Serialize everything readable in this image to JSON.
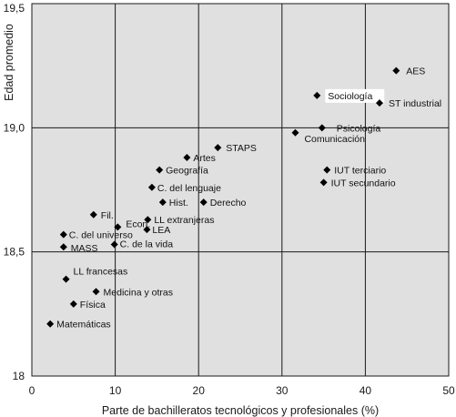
{
  "chart_data": {
    "type": "scatter",
    "title": "",
    "xlabel": "Parte de bachilleratos tecnológicos y profesionales (%)",
    "ylabel": "Edad promedio",
    "xlim": [
      0,
      50
    ],
    "ylim": [
      18,
      19.5
    ],
    "x_ticks": [
      0,
      10,
      20,
      30,
      40,
      50
    ],
    "y_ticks": [
      18,
      18.5,
      19,
      19.5
    ],
    "x_tick_labels": [
      "0",
      "10",
      "20",
      "30",
      "40",
      "50"
    ],
    "y_tick_labels": [
      "18",
      "18,5",
      "19,0",
      "19,5"
    ],
    "grid": true,
    "legend": "none",
    "colors": {
      "plot_bg": "#e0e0e0",
      "grid": "#1a1a1a",
      "marker": "#000000",
      "highlight_bg": "#ffffff"
    },
    "points": [
      {
        "label": "AES",
        "x": 43.7,
        "y": 19.23
      },
      {
        "label": "Sociología",
        "x": 34.2,
        "y": 19.13,
        "highlight": true
      },
      {
        "label": "ST industrial",
        "x": 41.7,
        "y": 19.1
      },
      {
        "label": "Psicología",
        "x": 34.8,
        "y": 19.0
      },
      {
        "label": "Comunicación",
        "x": 31.6,
        "y": 18.98
      },
      {
        "label": "STAPS",
        "x": 22.3,
        "y": 18.92
      },
      {
        "label": "Artes",
        "x": 18.6,
        "y": 18.88
      },
      {
        "label": "Geografía",
        "x": 15.3,
        "y": 18.83
      },
      {
        "label": "IUT terciario",
        "x": 35.4,
        "y": 18.83
      },
      {
        "label": "IUT secundario",
        "x": 35.0,
        "y": 18.78
      },
      {
        "label": "C. del lenguaje",
        "x": 14.4,
        "y": 18.76
      },
      {
        "label": "Hist.",
        "x": 15.7,
        "y": 18.7
      },
      {
        "label": "Derecho",
        "x": 20.6,
        "y": 18.7
      },
      {
        "label": "Fil.",
        "x": 7.4,
        "y": 18.65
      },
      {
        "label": "LL extranjeras",
        "x": 13.9,
        "y": 18.63
      },
      {
        "label": "Econ.",
        "x": 10.3,
        "y": 18.6
      },
      {
        "label": "LEA",
        "x": 13.8,
        "y": 18.59
      },
      {
        "label": "C. del universo",
        "x": 3.8,
        "y": 18.57
      },
      {
        "label": "C. de la vida",
        "x": 9.9,
        "y": 18.53
      },
      {
        "label": "MASS",
        "x": 3.8,
        "y": 18.52
      },
      {
        "label": "LL francesas",
        "x": 4.1,
        "y": 18.39
      },
      {
        "label": "Medicina y otras",
        "x": 7.7,
        "y": 18.34
      },
      {
        "label": "Física",
        "x": 5.0,
        "y": 18.29
      },
      {
        "label": "Matemáticas",
        "x": 2.2,
        "y": 18.21
      }
    ]
  }
}
